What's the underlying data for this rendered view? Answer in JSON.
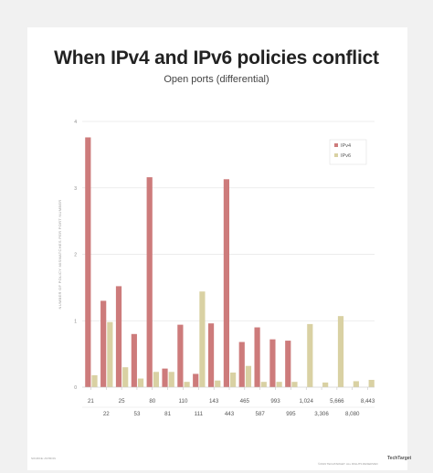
{
  "card": {
    "footer_left": "SOURCE: ASTRON",
    "footer_right": "©2019 TECHTARGET. ALL RIGHTS RESERVED",
    "logo_text": "TechTarget"
  },
  "chart_data": {
    "type": "bar",
    "title": "When IPv4 and IPv6 policies conflict",
    "subtitle": "Open ports (differential)",
    "ylabel": "NUMBER OF POLICY MISMATCHES PER PORT NUMBER",
    "xlabel": "",
    "ylim": [
      0,
      4
    ],
    "yticks": [
      "0",
      "1",
      "2",
      "3",
      "4"
    ],
    "grid": true,
    "legend": "top-right",
    "categories": [
      "21",
      "22",
      "25",
      "53",
      "80",
      "81",
      "110",
      "111",
      "143",
      "443",
      "465",
      "587",
      "993",
      "995",
      "1,024",
      "3,306",
      "5,666",
      "8,080",
      "8,443"
    ],
    "series": [
      {
        "name": "IPv4",
        "color": "#cd7b7b",
        "values": [
          3.76,
          1.3,
          1.52,
          0.8,
          3.16,
          0.28,
          0.94,
          0.2,
          0.96,
          3.13,
          0.68,
          0.9,
          0.72,
          0.7,
          0,
          0,
          0,
          0,
          0
        ]
      },
      {
        "name": "IPv6",
        "color": "#d9d1a3",
        "values": [
          0.18,
          0.98,
          0.3,
          0.13,
          0.23,
          0.23,
          0.08,
          1.44,
          0.1,
          0.22,
          0.32,
          0.08,
          0.08,
          0.08,
          0.95,
          0.07,
          1.07,
          0.09,
          0.11
        ]
      }
    ]
  }
}
